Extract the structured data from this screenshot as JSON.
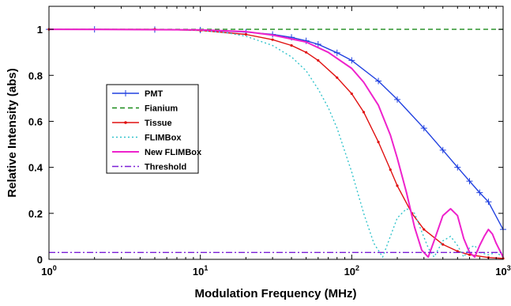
{
  "chart_data": {
    "type": "line",
    "xlabel": "Modulation Frequency (MHz)",
    "ylabel": "Relative Intensity (abs)",
    "x_scale": "log",
    "xlim": [
      1,
      1000
    ],
    "ylim": [
      0,
      1.1
    ],
    "grid": false,
    "legend_position": "left-center",
    "x_ticks": [
      {
        "value": 1,
        "base": "10",
        "exp": "0"
      },
      {
        "value": 10,
        "base": "10",
        "exp": "1"
      },
      {
        "value": 100,
        "base": "10",
        "exp": "2"
      },
      {
        "value": 1000,
        "base": "10",
        "exp": "3"
      }
    ],
    "y_ticks": [
      {
        "value": 0,
        "label": "0"
      },
      {
        "value": 0.2,
        "label": "0.2"
      },
      {
        "value": 0.4,
        "label": "0.4"
      },
      {
        "value": 0.6,
        "label": "0.6"
      },
      {
        "value": 0.8,
        "label": "0.8"
      },
      {
        "value": 1,
        "label": "1"
      }
    ],
    "series": [
      {
        "name": "PMT",
        "color": "#2040e0",
        "dash": "",
        "marker": "plus",
        "x": [
          1,
          2,
          5,
          10,
          20,
          30,
          40,
          50,
          60,
          80,
          100,
          150,
          200,
          300,
          400,
          500,
          600,
          700,
          800,
          1000
        ],
        "y": [
          1,
          1,
          0.999,
          0.997,
          0.988,
          0.978,
          0.965,
          0.95,
          0.935,
          0.898,
          0.865,
          0.775,
          0.695,
          0.57,
          0.475,
          0.4,
          0.34,
          0.29,
          0.25,
          0.13
        ]
      },
      {
        "name": "Fianium",
        "color": "#1a8a1a",
        "dash": "6,4",
        "marker": "",
        "x": [
          1,
          1000
        ],
        "y": [
          1,
          1
        ]
      },
      {
        "name": "Tissue",
        "color": "#e01010",
        "dash": "",
        "marker": "dot",
        "x": [
          1,
          5,
          10,
          20,
          30,
          40,
          50,
          60,
          80,
          100,
          120,
          150,
          180,
          200,
          250,
          300,
          400,
          500,
          600,
          800,
          1000
        ],
        "y": [
          1,
          1,
          0.995,
          0.978,
          0.955,
          0.93,
          0.9,
          0.865,
          0.79,
          0.72,
          0.64,
          0.51,
          0.39,
          0.32,
          0.2,
          0.13,
          0.065,
          0.035,
          0.02,
          0.008,
          0.004
        ]
      },
      {
        "name": "FLIMBox",
        "color": "#33c4cc",
        "dash": "2,3",
        "marker": "",
        "x": [
          1,
          5,
          10,
          15,
          20,
          30,
          40,
          50,
          60,
          70,
          80,
          100,
          120,
          140,
          160,
          180,
          200,
          230,
          260,
          290,
          320,
          350,
          400,
          450,
          500,
          550,
          600,
          650,
          700,
          800,
          900,
          1000
        ],
        "y": [
          1,
          1,
          0.995,
          0.985,
          0.97,
          0.93,
          0.88,
          0.82,
          0.74,
          0.66,
          0.57,
          0.38,
          0.2,
          0.07,
          0.01,
          0.1,
          0.18,
          0.22,
          0.2,
          0.12,
          0.05,
          0.01,
          0.08,
          0.1,
          0.06,
          0.01,
          0.05,
          0.06,
          0.03,
          0.02,
          0.03,
          0.01
        ]
      },
      {
        "name": "New FLIMBox",
        "color": "#ee22cc",
        "dash": "",
        "marker": "",
        "x": [
          1,
          10,
          20,
          30,
          50,
          70,
          100,
          120,
          150,
          180,
          200,
          230,
          260,
          290,
          320,
          350,
          400,
          450,
          500,
          550,
          600,
          650,
          700,
          750,
          800,
          850,
          900,
          1000
        ],
        "y": [
          1,
          0.998,
          0.99,
          0.975,
          0.945,
          0.9,
          0.83,
          0.77,
          0.67,
          0.54,
          0.44,
          0.29,
          0.14,
          0.04,
          0.01,
          0.08,
          0.19,
          0.22,
          0.19,
          0.09,
          0.03,
          0.01,
          0.06,
          0.1,
          0.13,
          0.11,
          0.07,
          0.01
        ]
      },
      {
        "name": "Threshold",
        "color": "#7a1fd6",
        "dash": "8,3,2,3",
        "marker": "",
        "x": [
          1,
          1000
        ],
        "y": [
          0.03,
          0.03
        ]
      }
    ]
  }
}
